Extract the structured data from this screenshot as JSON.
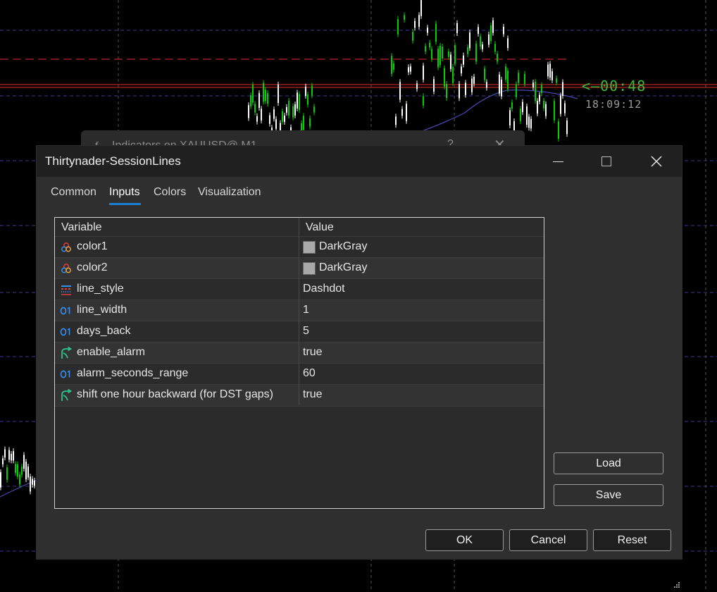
{
  "chart": {
    "countdown": "<—00:48",
    "clock": "18:09:12",
    "colors": {
      "bull": "#00d000",
      "bear": "#ffffff",
      "red_line": "#e03030",
      "dash_grid": "#3a3a90",
      "ma_line": "#4a4ab0"
    }
  },
  "background_dialog": {
    "title": "Indicators on XAUUSD@,M1",
    "help": "?",
    "close": "✕"
  },
  "dialog": {
    "title": "Thirtynader-SessionLines",
    "tabs": [
      {
        "label": "Common",
        "active": false
      },
      {
        "label": "Inputs",
        "active": true
      },
      {
        "label": "Colors",
        "active": false
      },
      {
        "label": "Visualization",
        "active": false
      }
    ],
    "grid": {
      "headers": {
        "variable": "Variable",
        "value": "Value"
      },
      "rows": [
        {
          "icon": "color-palette-icon",
          "name": "color1",
          "value": "DarkGray",
          "swatch": "#a9a9a9"
        },
        {
          "icon": "color-palette-icon",
          "name": "color2",
          "value": "DarkGray",
          "swatch": "#a9a9a9"
        },
        {
          "icon": "line-style-icon",
          "name": "line_style",
          "value": "Dashdot"
        },
        {
          "icon": "integer-icon",
          "name": "line_width",
          "value": "1"
        },
        {
          "icon": "integer-icon",
          "name": "days_back",
          "value": "5"
        },
        {
          "icon": "boolean-icon",
          "name": "enable_alarm",
          "value": "true"
        },
        {
          "icon": "integer-icon",
          "name": "alarm_seconds_range",
          "value": "60"
        },
        {
          "icon": "boolean-icon",
          "name": "shift one hour backward (for DST gaps)",
          "value": "true"
        }
      ]
    },
    "buttons": {
      "load": "Load",
      "save": "Save",
      "ok": "OK",
      "cancel": "Cancel",
      "reset": "Reset"
    }
  }
}
